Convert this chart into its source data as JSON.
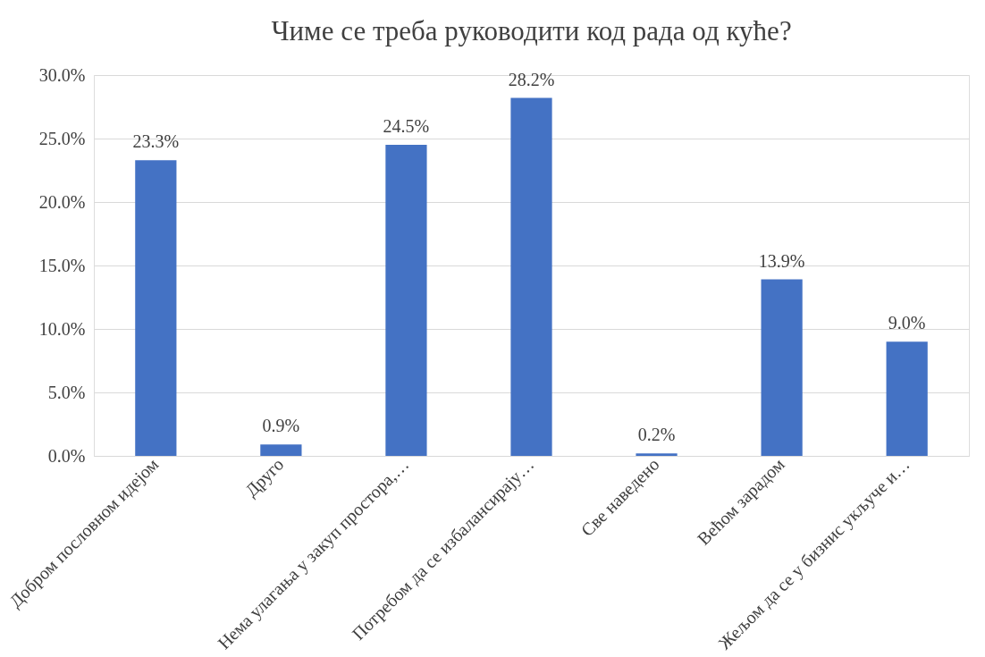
{
  "chart_data": {
    "type": "bar",
    "title": "Чиме се треба руководити код рада од куће?",
    "categories": [
      "Добром пословном идејом",
      "Друго",
      "Нема улагања у закуп простора,…",
      "Потребом да се избалансирају…",
      "Све наведено",
      "Већом зарадом",
      "Жељом да се у бизнис укључе и…"
    ],
    "values": [
      23.3,
      0.9,
      24.5,
      28.2,
      0.2,
      13.9,
      9.0
    ],
    "value_labels": [
      "23.3%",
      "0.9%",
      "24.5%",
      "28.2%",
      "0.2%",
      "13.9%",
      "9.0%"
    ],
    "color": "#4472c4",
    "ylim": [
      0,
      30
    ],
    "yticks": [
      {
        "value": 0,
        "label": "0.0%"
      },
      {
        "value": 5,
        "label": "5.0%"
      },
      {
        "value": 10,
        "label": "10.0%"
      },
      {
        "value": 15,
        "label": "15.0%"
      },
      {
        "value": 20,
        "label": "20.0%"
      },
      {
        "value": 25,
        "label": "25.0%"
      },
      {
        "value": 30,
        "label": "30.0%"
      }
    ],
    "grid": "y"
  }
}
